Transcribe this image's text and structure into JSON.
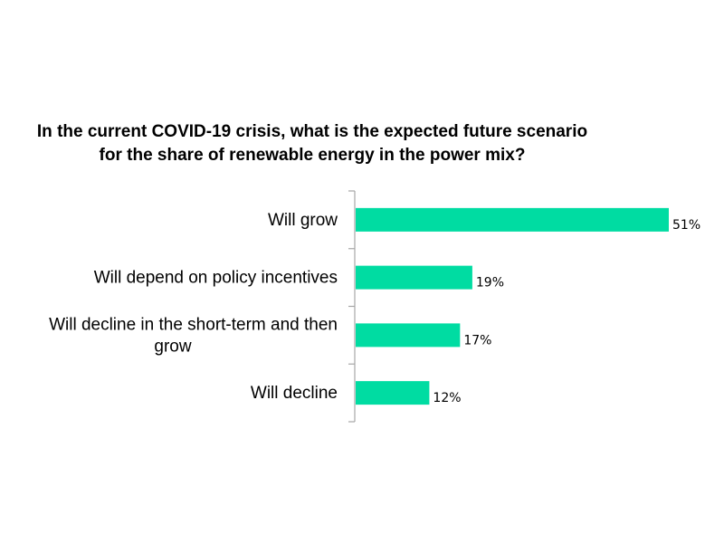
{
  "chart_data": {
    "type": "bar",
    "orientation": "horizontal",
    "title_lines": [
      "In the current COVID-19 crisis, what is the expected future scenario",
      "for the share of renewable energy in the power mix?"
    ],
    "categories": [
      [
        "Will grow"
      ],
      [
        "Will depend on policy incentives"
      ],
      [
        "Will decline in the short-term and then",
        "grow"
      ],
      [
        "Will decline"
      ]
    ],
    "values": [
      51,
      19,
      17,
      12
    ],
    "value_labels": [
      "51%",
      "19%",
      "17%",
      "12%"
    ],
    "unit": "%",
    "xlim": [
      0,
      60
    ],
    "grid": false,
    "legend": "none",
    "bar_color": "#00DCA2",
    "axis_color": "#A6A6A6"
  }
}
